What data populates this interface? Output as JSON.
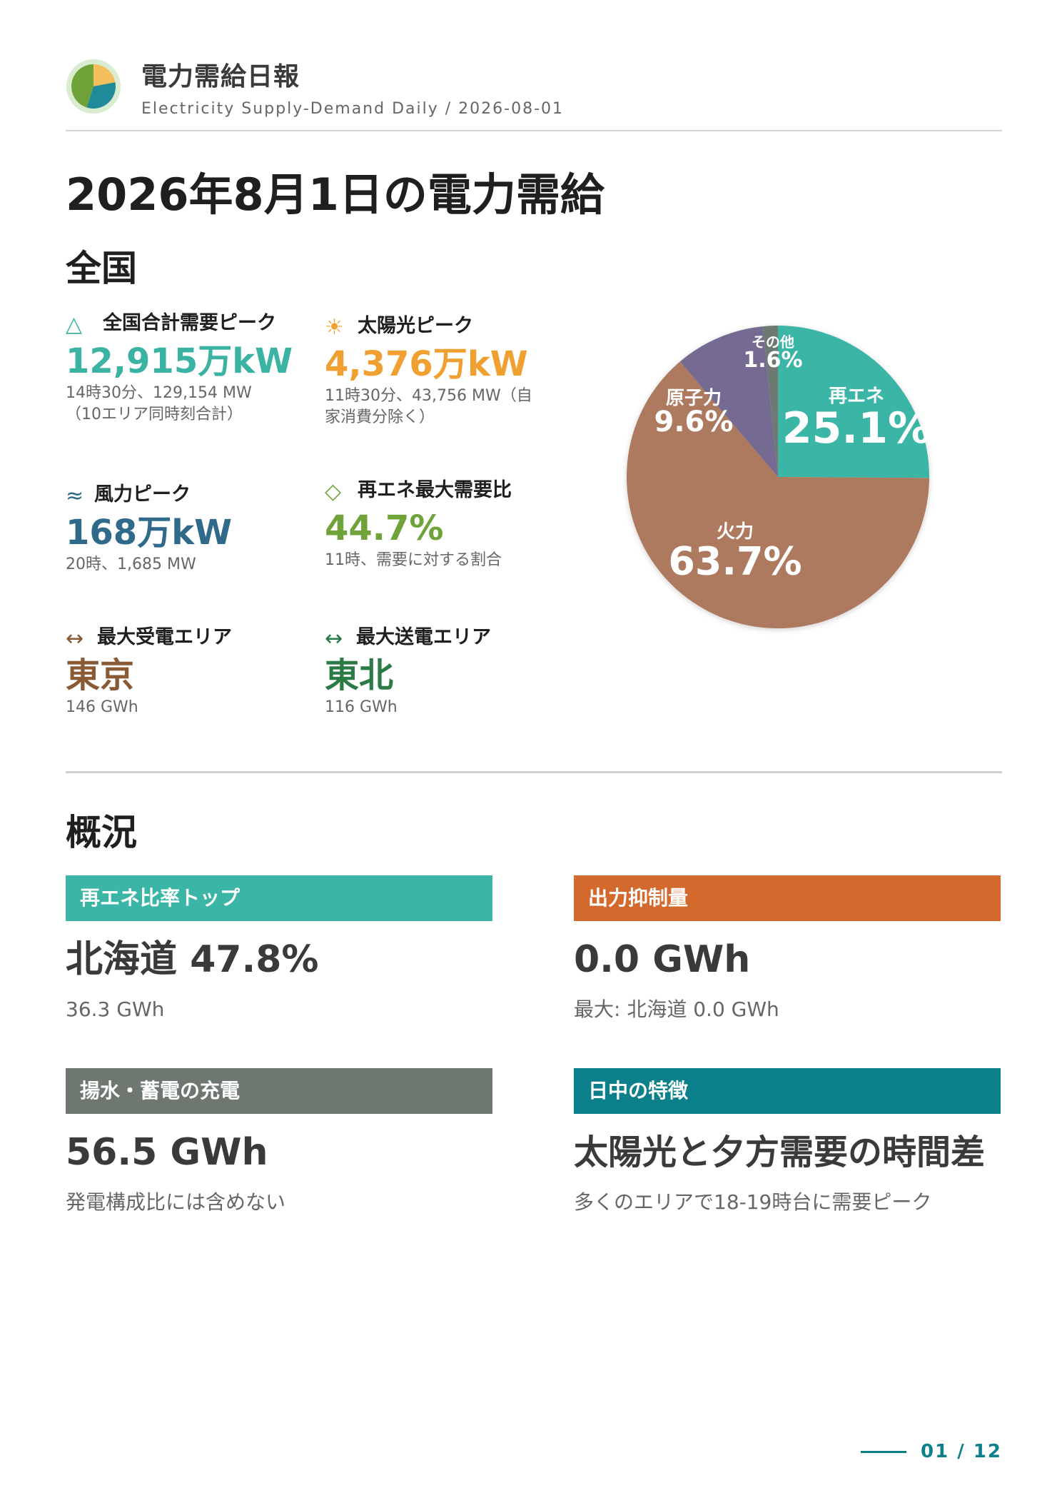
{
  "header": {
    "title": "電力需給日報",
    "subtitle": "Electricity Supply-Demand Daily / 2026-08-01"
  },
  "page_title": "2026年8月1日の電力需給",
  "national": {
    "section_title": "全国",
    "metrics": [
      {
        "icon": "triangle-icon",
        "symbol": "△",
        "label": "全国合計需要ピーク",
        "value": "12,915万kW",
        "note": "14時30分、129,154 MW（10エリア同時刻合計）",
        "color": "#3bb3a3"
      },
      {
        "icon": "sun-icon",
        "symbol": "☀",
        "label": "太陽光ピーク",
        "value": "4,376万kW",
        "note": "11時30分、43,756 MW（自家消費分除く）",
        "color": "#f0a030"
      },
      {
        "icon": "wind-icon",
        "symbol": "≈",
        "label": "風力ピーク",
        "value": "168万kW",
        "note": "20時、1,685 MW",
        "color": "#2f6a8a"
      },
      {
        "icon": "diamond-icon",
        "symbol": "◇",
        "label": "再エネ最大需要比",
        "value": "44.7%",
        "note": "11時、需要に対する割合",
        "color": "#6fa33a"
      },
      {
        "icon": "arrows-icon",
        "symbol": "↔",
        "label": "最大受電エリア",
        "value": "東京",
        "note": "146 GWh",
        "color": "#8a5a35"
      },
      {
        "icon": "arrows-icon",
        "symbol": "↔",
        "label": "最大送電エリア",
        "value": "東北",
        "note": "116 GWh",
        "color": "#2c7a45"
      }
    ]
  },
  "chart_data": {
    "type": "pie",
    "slices": [
      {
        "label": "再エネ",
        "value": 25.1,
        "display": "25.1%",
        "color": "#3bb6a6"
      },
      {
        "label": "火力",
        "value": 63.7,
        "display": "63.7%",
        "color": "#ad7a60"
      },
      {
        "label": "原子力",
        "value": 9.6,
        "display": "9.6%",
        "color": "#756a92"
      },
      {
        "label": "その他",
        "value": 1.6,
        "display": "1.6%",
        "color": "#6d7a72"
      }
    ]
  },
  "overview": {
    "section_title": "概況",
    "cards": [
      {
        "head": "再エネ比率トップ",
        "value": "北海道 47.8%",
        "sub": "36.3 GWh",
        "color": "#3bb6a6"
      },
      {
        "head": "出力抑制量",
        "value": "0.0 GWh",
        "sub": "最大: 北海道 0.0 GWh",
        "color": "#d4692e"
      },
      {
        "head": "揚水・蓄電の充電",
        "value": "56.5 GWh",
        "sub": "発電構成比には含めない",
        "color": "#6e7770"
      },
      {
        "head": "日中の特徴",
        "value": "太陽光と夕方需要の時間差",
        "sub": "多くのエリアで18-19時台に需要ピーク",
        "color": "#0b7f8a"
      }
    ]
  },
  "footer": {
    "page": "01 / 12"
  }
}
